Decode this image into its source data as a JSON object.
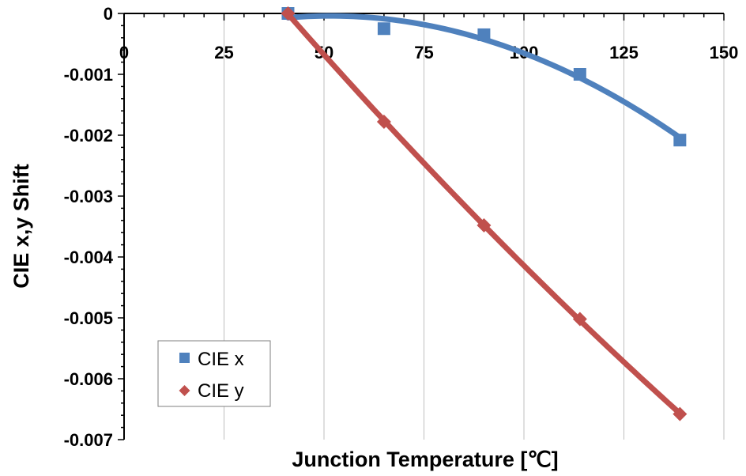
{
  "chart_data": {
    "type": "scatter",
    "title": "",
    "xlabel": "Junction Temperature [℃]",
    "ylabel": "CIE x,y Shift",
    "xlim": [
      0,
      150
    ],
    "ylim": [
      -0.007,
      0
    ],
    "x_ticks": [
      0,
      25,
      50,
      75,
      100,
      125,
      150
    ],
    "x_tick_labels": [
      "0",
      "25",
      "50",
      "75",
      "100",
      "125",
      "150"
    ],
    "y_ticks": [
      0,
      -0.001,
      -0.002,
      -0.003,
      -0.004,
      -0.005,
      -0.006,
      -0.007
    ],
    "y_tick_labels": [
      "0",
      "-0.001",
      "-0.002",
      "-0.003",
      "-0.004",
      "-0.005",
      "-0.006",
      "-0.007"
    ],
    "x_axis_position": "top",
    "grid": "vertical",
    "legend_position": "bottom-left",
    "series": [
      {
        "name": "CIE x",
        "marker": "square",
        "color": "#4f81bd",
        "x": [
          41,
          65,
          90,
          114,
          139
        ],
        "y": [
          0,
          -0.00025,
          -0.00035,
          -0.001,
          -0.00208
        ],
        "trendline": "polynomial"
      },
      {
        "name": "CIE y",
        "marker": "diamond",
        "color": "#c0504d",
        "x": [
          41,
          65,
          90,
          114,
          139
        ],
        "y": [
          0,
          -0.00178,
          -0.00348,
          -0.00502,
          -0.00658
        ],
        "trendline": "polynomial"
      }
    ]
  }
}
